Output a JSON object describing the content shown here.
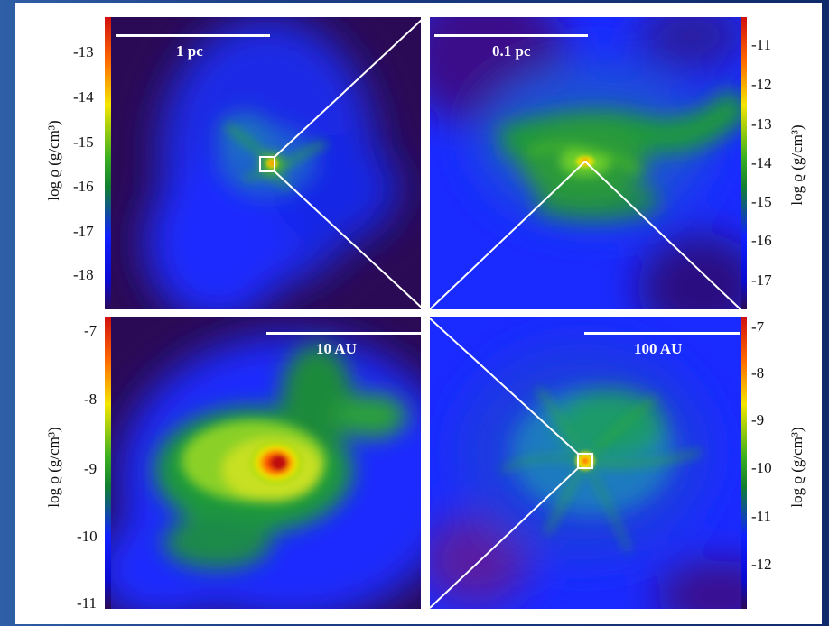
{
  "figure": {
    "panels": [
      {
        "id": "top-left",
        "scale_label": "1 pc",
        "ylabel": "log ϱ (g/cm³)",
        "ticks": [
          "-13",
          "-14",
          "-15",
          "-16",
          "-17",
          "-18"
        ]
      },
      {
        "id": "top-right",
        "scale_label": "0.1 pc",
        "ylabel": "log ϱ (g/cm³)",
        "ticks": [
          "-11",
          "-12",
          "-13",
          "-14",
          "-15",
          "-16",
          "-17"
        ]
      },
      {
        "id": "bottom-left",
        "scale_label": "10 AU",
        "ylabel": "log ϱ (g/cm³)",
        "ticks": [
          "-7",
          "-8",
          "-9",
          "-10",
          "-11"
        ]
      },
      {
        "id": "bottom-right",
        "scale_label": "100 AU",
        "ylabel": "log ϱ (g/cm³)",
        "ticks": [
          "-7",
          "-8",
          "-9",
          "-10",
          "-11",
          "-12"
        ]
      }
    ]
  },
  "colors": {
    "background_purple": "#2b0a55",
    "diffuse_blue": "#1a2bff",
    "filament_green": "#2faa2a",
    "core_yellow": "#f2e400",
    "core_red": "#d81a0a",
    "slide_blue": "#1d3f86"
  }
}
